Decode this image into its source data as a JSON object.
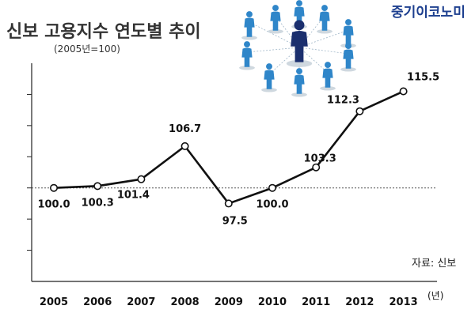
{
  "chart_data": {
    "type": "line",
    "title": "신보 고용지수 연도별 추이",
    "subtitle": "(2005년=100)",
    "xlabel": "",
    "ylabel": "",
    "x_unit": "(년)",
    "categories": [
      "2005",
      "2006",
      "2007",
      "2008",
      "2009",
      "2010",
      "2011",
      "2012",
      "2013"
    ],
    "series": [
      {
        "values": [
          100.0,
          100.3,
          101.4,
          106.7,
          97.5,
          100.0,
          103.3,
          112.3,
          115.5
        ],
        "labels": [
          "100.0",
          "100.3",
          "101.4",
          "106.7",
          "97.5",
          "100.0",
          "103.3",
          "112.3",
          "115.5"
        ]
      }
    ],
    "ylim": [
      85,
      120
    ],
    "reference_line": 100,
    "y_ticks_labeled": false,
    "grid": false,
    "source": "자료: 신보",
    "brand": "중기이코노미",
    "colors": {
      "line": "#111111",
      "reference": "#555555",
      "brand": "#1d3f8f",
      "figures": "#2f86c9"
    }
  }
}
